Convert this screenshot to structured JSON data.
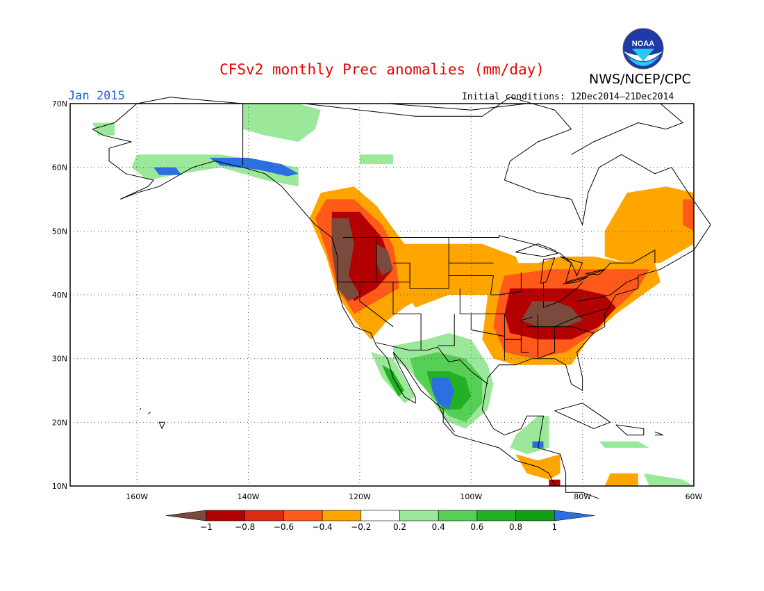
{
  "header": {
    "title": "CFSv2 monthly Prec anomalies (mm/day)",
    "agency": "NWS/NCEP/CPC",
    "logo_text": "NOAA",
    "month": "Jan 2015",
    "initial_conditions": "Initial conditions: 12Dec2014–21Dec2014"
  },
  "map": {
    "lat_labels": [
      "10N",
      "20N",
      "30N",
      "40N",
      "50N",
      "60N",
      "70N"
    ],
    "lon_labels": [
      "160W",
      "140W",
      "120W",
      "100W",
      "80W",
      "60W"
    ],
    "lat_range": [
      10,
      70
    ],
    "lon_range": [
      -172,
      -60
    ],
    "grid": "dotted",
    "ocean_color": "#ffffff",
    "coastline_color": "#000000"
  },
  "colorbar": {
    "levels": [
      "−1",
      "−0.8",
      "−0.6",
      "−0.4",
      "−0.2",
      "0.2",
      "0.4",
      "0.6",
      "0.8",
      "1"
    ],
    "colors": [
      "#7a4a3c",
      "#b30000",
      "#dd2a10",
      "#ff5a1a",
      "#ffa500",
      "#ffffff",
      "#9be89b",
      "#55d055",
      "#24b024",
      "#139d13",
      "#2c6fe0"
    ]
  },
  "chart_data": {
    "type": "heatmap",
    "variable": "Prec anomalies (mm/day)",
    "regions": [
      {
        "lon": [
          -124,
          -120
        ],
        "lat": [
          36,
          48
        ],
        "value": -1.0
      },
      {
        "lon": [
          -118,
          -114
        ],
        "lat": [
          42,
          50
        ],
        "value": -0.8
      },
      {
        "lon": [
          -120,
          -112
        ],
        "lat": [
          36,
          46
        ],
        "value": -0.4
      },
      {
        "lon": [
          -92,
          -80
        ],
        "lat": [
          34,
          40
        ],
        "value": -1.0
      },
      {
        "lon": [
          -95,
          -74
        ],
        "lat": [
          32,
          44
        ],
        "value": -0.8
      },
      {
        "lon": [
          -95,
          -70
        ],
        "lat": [
          33,
          45
        ],
        "value": -0.6
      },
      {
        "lon": [
          -76,
          -60
        ],
        "lat": [
          44,
          56
        ],
        "value": -0.2
      },
      {
        "lon": [
          -112,
          -96
        ],
        "lat": [
          38,
          47
        ],
        "value": -0.2
      },
      {
        "lon": [
          -110,
          -100
        ],
        "lat": [
          20,
          30
        ],
        "value": 0.6
      },
      {
        "lon": [
          -108,
          -102
        ],
        "lat": [
          22,
          27
        ],
        "value": 1.0
      },
      {
        "lon": [
          -140,
          -130
        ],
        "lat": [
          59,
          62
        ],
        "value": 1.0
      },
      {
        "lon": [
          -140,
          -128
        ],
        "lat": [
          62,
          70
        ],
        "value": 0.4
      }
    ]
  }
}
